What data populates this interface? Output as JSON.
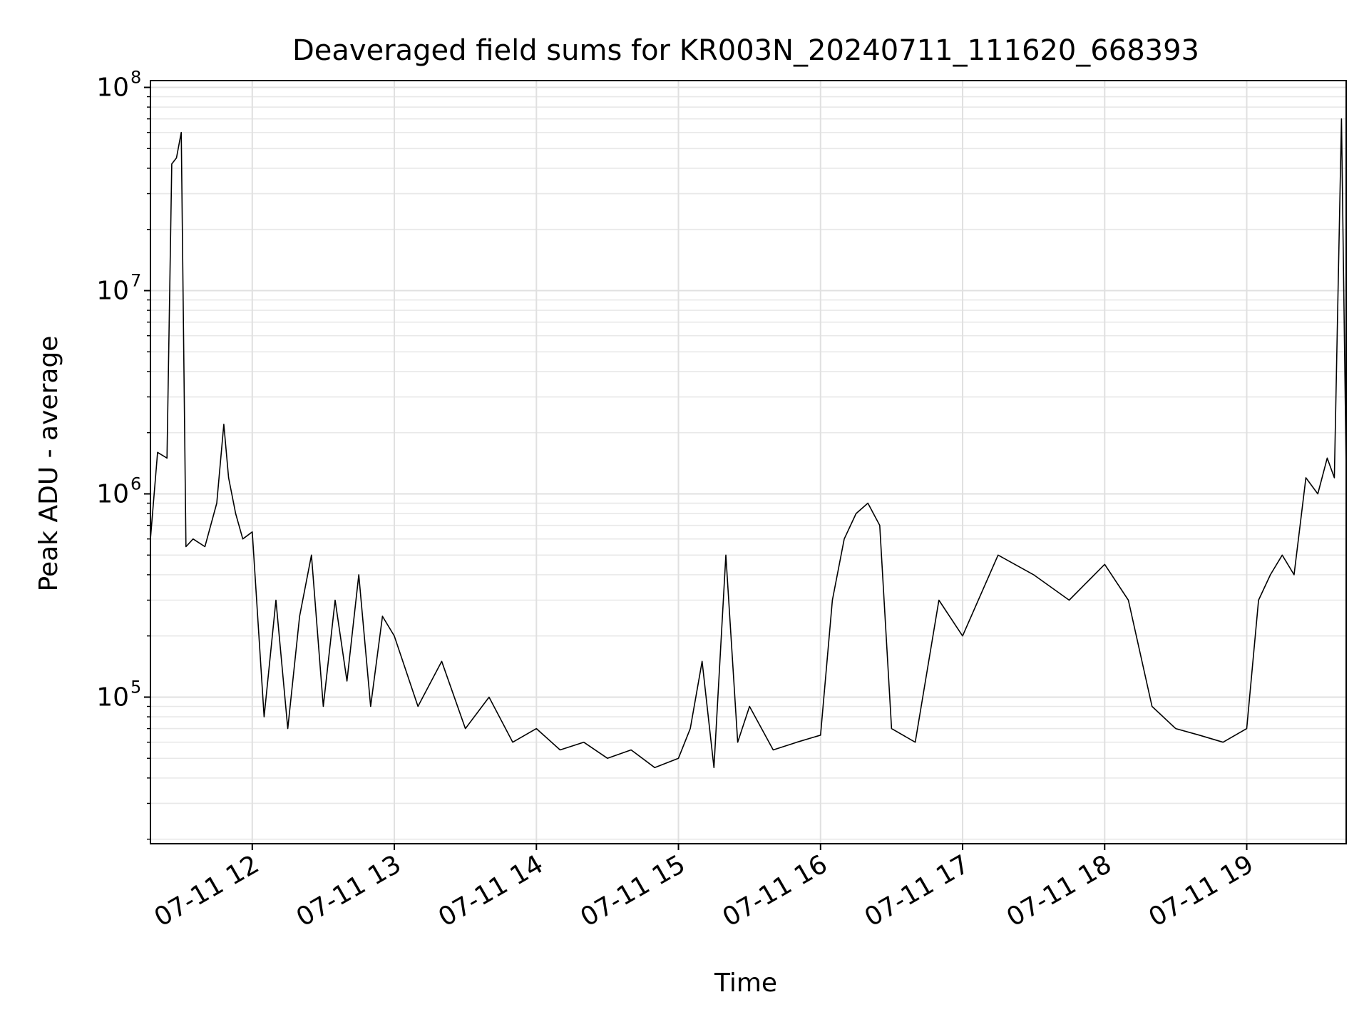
{
  "chart_data": {
    "type": "line",
    "title": "Deaveraged field sums for KR003N_20240711_111620_668393",
    "xlabel": "Time",
    "ylabel": "Peak ADU - average",
    "y_scale": "log",
    "ylim": [
      19000,
      108000000
    ],
    "xlim": [
      "2024-07-11 11:17",
      "2024-07-11 19:42"
    ],
    "grid": true,
    "line_color": "#000000",
    "x_ticks": [
      {
        "value": "2024-07-11 12:00",
        "label": "07-11 12"
      },
      {
        "value": "2024-07-11 13:00",
        "label": "07-11 13"
      },
      {
        "value": "2024-07-11 14:00",
        "label": "07-11 14"
      },
      {
        "value": "2024-07-11 15:00",
        "label": "07-11 15"
      },
      {
        "value": "2024-07-11 16:00",
        "label": "07-11 16"
      },
      {
        "value": "2024-07-11 17:00",
        "label": "07-11 17"
      },
      {
        "value": "2024-07-11 18:00",
        "label": "07-11 18"
      },
      {
        "value": "2024-07-11 19:00",
        "label": "07-11 19"
      }
    ],
    "y_ticks": [
      {
        "value": 100000,
        "base": "10",
        "exp": "5"
      },
      {
        "value": 1000000,
        "base": "10",
        "exp": "6"
      },
      {
        "value": 10000000,
        "base": "10",
        "exp": "7"
      },
      {
        "value": 100000000,
        "base": "10",
        "exp": "8"
      }
    ],
    "series": [
      {
        "x": [
          "2024-07-11 11:17",
          "2024-07-11 11:20",
          "2024-07-11 11:24",
          "2024-07-11 11:26",
          "2024-07-11 11:28",
          "2024-07-11 11:30",
          "2024-07-11 11:32",
          "2024-07-11 11:35",
          "2024-07-11 11:40",
          "2024-07-11 11:45",
          "2024-07-11 11:48",
          "2024-07-11 11:50",
          "2024-07-11 11:53",
          "2024-07-11 11:56",
          "2024-07-11 12:00",
          "2024-07-11 12:05",
          "2024-07-11 12:10",
          "2024-07-11 12:15",
          "2024-07-11 12:20",
          "2024-07-11 12:25",
          "2024-07-11 12:30",
          "2024-07-11 12:35",
          "2024-07-11 12:40",
          "2024-07-11 12:45",
          "2024-07-11 12:50",
          "2024-07-11 12:55",
          "2024-07-11 13:00",
          "2024-07-11 13:10",
          "2024-07-11 13:20",
          "2024-07-11 13:30",
          "2024-07-11 13:40",
          "2024-07-11 13:50",
          "2024-07-11 14:00",
          "2024-07-11 14:10",
          "2024-07-11 14:20",
          "2024-07-11 14:30",
          "2024-07-11 14:40",
          "2024-07-11 14:50",
          "2024-07-11 15:00",
          "2024-07-11 15:05",
          "2024-07-11 15:10",
          "2024-07-11 15:15",
          "2024-07-11 15:20",
          "2024-07-11 15:25",
          "2024-07-11 15:30",
          "2024-07-11 15:40",
          "2024-07-11 15:50",
          "2024-07-11 16:00",
          "2024-07-11 16:05",
          "2024-07-11 16:10",
          "2024-07-11 16:15",
          "2024-07-11 16:20",
          "2024-07-11 16:25",
          "2024-07-11 16:30",
          "2024-07-11 16:40",
          "2024-07-11 16:50",
          "2024-07-11 17:00",
          "2024-07-11 17:15",
          "2024-07-11 17:30",
          "2024-07-11 17:45",
          "2024-07-11 18:00",
          "2024-07-11 18:10",
          "2024-07-11 18:20",
          "2024-07-11 18:30",
          "2024-07-11 18:40",
          "2024-07-11 18:50",
          "2024-07-11 19:00",
          "2024-07-11 19:05",
          "2024-07-11 19:10",
          "2024-07-11 19:15",
          "2024-07-11 19:20",
          "2024-07-11 19:25",
          "2024-07-11 19:30",
          "2024-07-11 19:34",
          "2024-07-11 19:37",
          "2024-07-11 19:40",
          "2024-07-11 19:42"
        ],
        "y": [
          600000,
          1600000,
          1500000,
          42000000,
          45000000,
          60000000,
          550000,
          600000,
          550000,
          900000,
          2200000,
          1200000,
          800000,
          600000,
          650000,
          80000,
          300000,
          70000,
          250000,
          500000,
          90000,
          300000,
          120000,
          400000,
          90000,
          250000,
          200000,
          90000,
          150000,
          70000,
          100000,
          60000,
          70000,
          55000,
          60000,
          50000,
          55000,
          45000,
          50000,
          70000,
          150000,
          45000,
          500000,
          60000,
          90000,
          55000,
          60000,
          65000,
          300000,
          600000,
          800000,
          900000,
          700000,
          70000,
          60000,
          300000,
          200000,
          500000,
          400000,
          300000,
          450000,
          300000,
          90000,
          70000,
          65000,
          60000,
          70000,
          300000,
          400000,
          500000,
          400000,
          1200000,
          1000000,
          1500000,
          1200000,
          70000000,
          1300000
        ]
      }
    ]
  }
}
